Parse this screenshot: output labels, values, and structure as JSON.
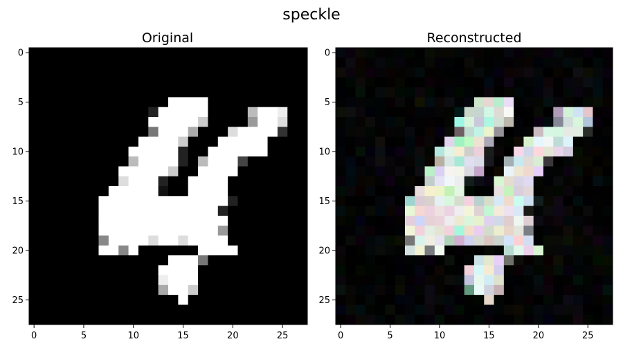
{
  "chart_data": {
    "type": "heatmap",
    "suptitle": "speckle",
    "panels": [
      {
        "title": "Original",
        "image": [
          "0000000000000000000000000000",
          "0000000000000000000000000000",
          "0000000000000000000000000000",
          "0000000000000000000000000000",
          "0000000000000000000000000000",
          "00000000000000FFFF0000000000",
          "0000000000002FFFFF0000BFFE00",
          "000000000000FFFFFC00009FFD00",
          "0000000000007FFFA000DFFFF300",
          "00000000000FFFFC000FFFFF0000",
          "0000000000FFFFF200FFFFFF0000",
          "0000000000BFFFF20BFFF4000000",
          "000000000FFFFFC00FFFF0000000",
          "000000000DFFF200FFFF00000000",
          "00000000FFFFF100FFFF00000000",
          "0000000FFFFFFFFFFFFF20000000",
          "0000000FFFFFFFFFFFF200000000",
          "0000000FFFFFFFFFFFFF00000000",
          "0000000FFFFFFFFFFFF900000000",
          "00000008FFFFDFFDFFFF00000000",
          "0000000FF8F000000FFFF0000000",
          "00000000000000FFF70000000000",
          "0000000000000FFFF00000000000",
          "0000000000000EFFF00000000000",
          "0000000000000AFFC00000000000",
          "000000000000000F000000000000",
          "0000000000000000000000000000",
          "0000000000000000000000000000"
        ]
      },
      {
        "title": "Reconstructed",
        "image": [
          "0000000000000000000000000000",
          "0000000000000000000000000000",
          "0000000000000000000000000000",
          "0000000000000000000000000000",
          "0000000000000000000000000000",
          "00000000000000FFFF0000000000",
          "0000000000002FFFFF0000BFFE00",
          "000000000000FFFFFC00009FFD00",
          "0000000000007FFFA000DFFFF300",
          "00000000000FFFFC000FFFFF0000",
          "0000000000FFFFF200FFFFFF0000",
          "0000000000BFFFF20BFFF4000000",
          "000000000FFFFFC00FFFF0000000",
          "000000000DFFF200FFFF00000000",
          "00000000FFFFF100FFFF00000000",
          "0000000FFFFFFFFFFFFF20000000",
          "0000000FFFFFFFFFFFF200000000",
          "0000000FFFFFFFFFFFFF00000000",
          "0000000FFFFFFFFFFFF900000000",
          "00000008FFFFDFFDFFFF00000000",
          "0000000FF8F000000FFFF0000000",
          "00000000000000FFF70000000000",
          "0000000000000FFFF00000000000",
          "0000000000000EFFF00000000000",
          "0000000000000AFFC00000000000",
          "000000000000000F000000000000",
          "0000000000000000000000000000",
          "0000000000000000000000000000"
        ],
        "noise": "colored speckle"
      }
    ],
    "xticks": [
      0,
      5,
      10,
      15,
      20,
      25
    ],
    "yticks": [
      0,
      5,
      10,
      15,
      20,
      25
    ],
    "xlim": [
      -0.5,
      27.5
    ],
    "ylim": [
      27.5,
      -0.5
    ],
    "grid": false,
    "colormap": "gray"
  }
}
